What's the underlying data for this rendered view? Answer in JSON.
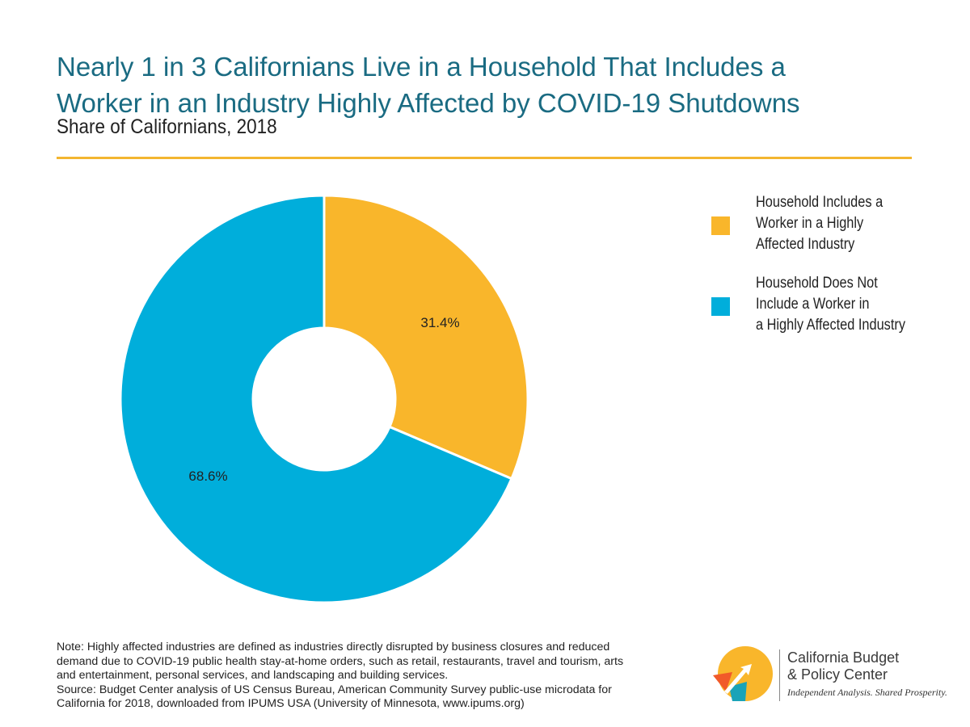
{
  "header": {
    "title_line1": "Nearly 1 in 3 Californians Live in a Household That Includes a",
    "title_line2": "Worker in an Industry Highly Affected by COVID-19 Shutdowns",
    "subtitle": "Share of Californians, 2018"
  },
  "chart_data": {
    "type": "pie",
    "title": "Nearly 1 in 3 Californians Live in a Household That Includes a Worker in an Industry Highly Affected by COVID-19 Shutdowns",
    "subtitle": "Share of Californians, 2018",
    "donut": true,
    "legend_position": "right",
    "slices": [
      {
        "name": "Household Includes a Worker in a Highly Affected Industry",
        "value": 31.4,
        "label": "31.4%",
        "color": "#f9b62b"
      },
      {
        "name": "Household Does Not Include a Worker in a Highly Affected Industry",
        "value": 68.6,
        "label": "68.6%",
        "color": "#00aedb"
      }
    ]
  },
  "legend": {
    "items": [
      {
        "label": "Household Includes a\nWorker in a Highly\nAffected Industry",
        "color": "#f9b62b"
      },
      {
        "label": "Household Does Not\nInclude a Worker in\na Highly Affected Industry",
        "color": "#00aedb"
      }
    ]
  },
  "notes": {
    "note_lines": [
      "Note: Highly affected industries are defined as industries directly disrupted by business closures and reduced",
      "demand due to COVID-19 public health stay-at-home orders, such as retail, restaurants, travel and tourism, arts",
      "and entertainment, personal services, and landscaping and building services."
    ],
    "source_lines": [
      "Source: Budget Center analysis of US Census Bureau, American Community Survey public-use microdata for",
      "California for 2018, downloaded from IPUMS USA (University of Minnesota, www.ipums.org)"
    ]
  },
  "logo": {
    "name_line1": "California Budget",
    "name_line2": "& Policy Center",
    "tagline": "Independent Analysis. Shared Prosperity.",
    "colors": {
      "yellow": "#f9b62b",
      "orange": "#f15a29",
      "teal": "#1aa3b8"
    }
  }
}
